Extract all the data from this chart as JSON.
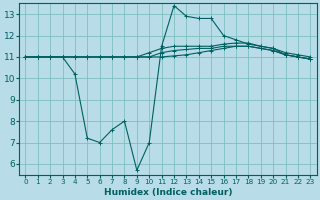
{
  "xlabel": "Humidex (Indice chaleur)",
  "xlim": [
    -0.5,
    23.5
  ],
  "ylim": [
    5.5,
    13.5
  ],
  "yticks": [
    6,
    7,
    8,
    9,
    10,
    11,
    12,
    13
  ],
  "xticks": [
    0,
    1,
    2,
    3,
    4,
    5,
    6,
    7,
    8,
    9,
    10,
    11,
    12,
    13,
    14,
    15,
    16,
    17,
    18,
    19,
    20,
    21,
    22,
    23
  ],
  "bg_color": "#b8dce8",
  "grid_color": "#7fbfbf",
  "line_color": "#006060",
  "lines": [
    {
      "x": [
        0,
        1,
        2,
        3,
        4,
        5,
        6,
        7,
        8,
        9,
        10,
        11,
        12,
        13,
        14,
        15,
        16,
        17,
        18,
        19,
        20,
        21,
        22,
        23
      ],
      "y": [
        11,
        11,
        11,
        11,
        10.2,
        7.2,
        7.0,
        7.6,
        8.0,
        5.7,
        7.0,
        11.5,
        13.4,
        12.9,
        12.8,
        12.8,
        12.0,
        11.8,
        11.6,
        11.5,
        11.4,
        11.1,
        11.0,
        10.9
      ]
    },
    {
      "x": [
        0,
        1,
        2,
        3,
        4,
        5,
        6,
        7,
        8,
        9,
        10,
        11,
        12,
        13,
        14,
        15,
        16,
        17,
        18,
        19,
        20,
        21,
        22,
        23
      ],
      "y": [
        11,
        11,
        11,
        11,
        11,
        11,
        11,
        11,
        11,
        11,
        11.2,
        11.4,
        11.5,
        11.5,
        11.5,
        11.5,
        11.6,
        11.65,
        11.65,
        11.5,
        11.4,
        11.2,
        11.1,
        11.0
      ]
    },
    {
      "x": [
        0,
        1,
        2,
        3,
        4,
        5,
        6,
        7,
        8,
        9,
        10,
        11,
        12,
        13,
        14,
        15,
        16,
        17,
        18,
        19,
        20,
        21,
        22,
        23
      ],
      "y": [
        11,
        11,
        11,
        11,
        11,
        11,
        11,
        11,
        11,
        11,
        11,
        11.2,
        11.3,
        11.35,
        11.4,
        11.4,
        11.5,
        11.5,
        11.5,
        11.4,
        11.3,
        11.1,
        11.0,
        10.9
      ]
    },
    {
      "x": [
        0,
        1,
        2,
        3,
        4,
        5,
        6,
        7,
        8,
        9,
        10,
        11,
        12,
        13,
        14,
        15,
        16,
        17,
        18,
        19,
        20,
        21,
        22,
        23
      ],
      "y": [
        11,
        11,
        11,
        11,
        11,
        11,
        11,
        11,
        11,
        11,
        11,
        11,
        11.05,
        11.1,
        11.2,
        11.3,
        11.4,
        11.5,
        11.5,
        11.4,
        11.3,
        11.1,
        11.0,
        10.9
      ]
    }
  ]
}
